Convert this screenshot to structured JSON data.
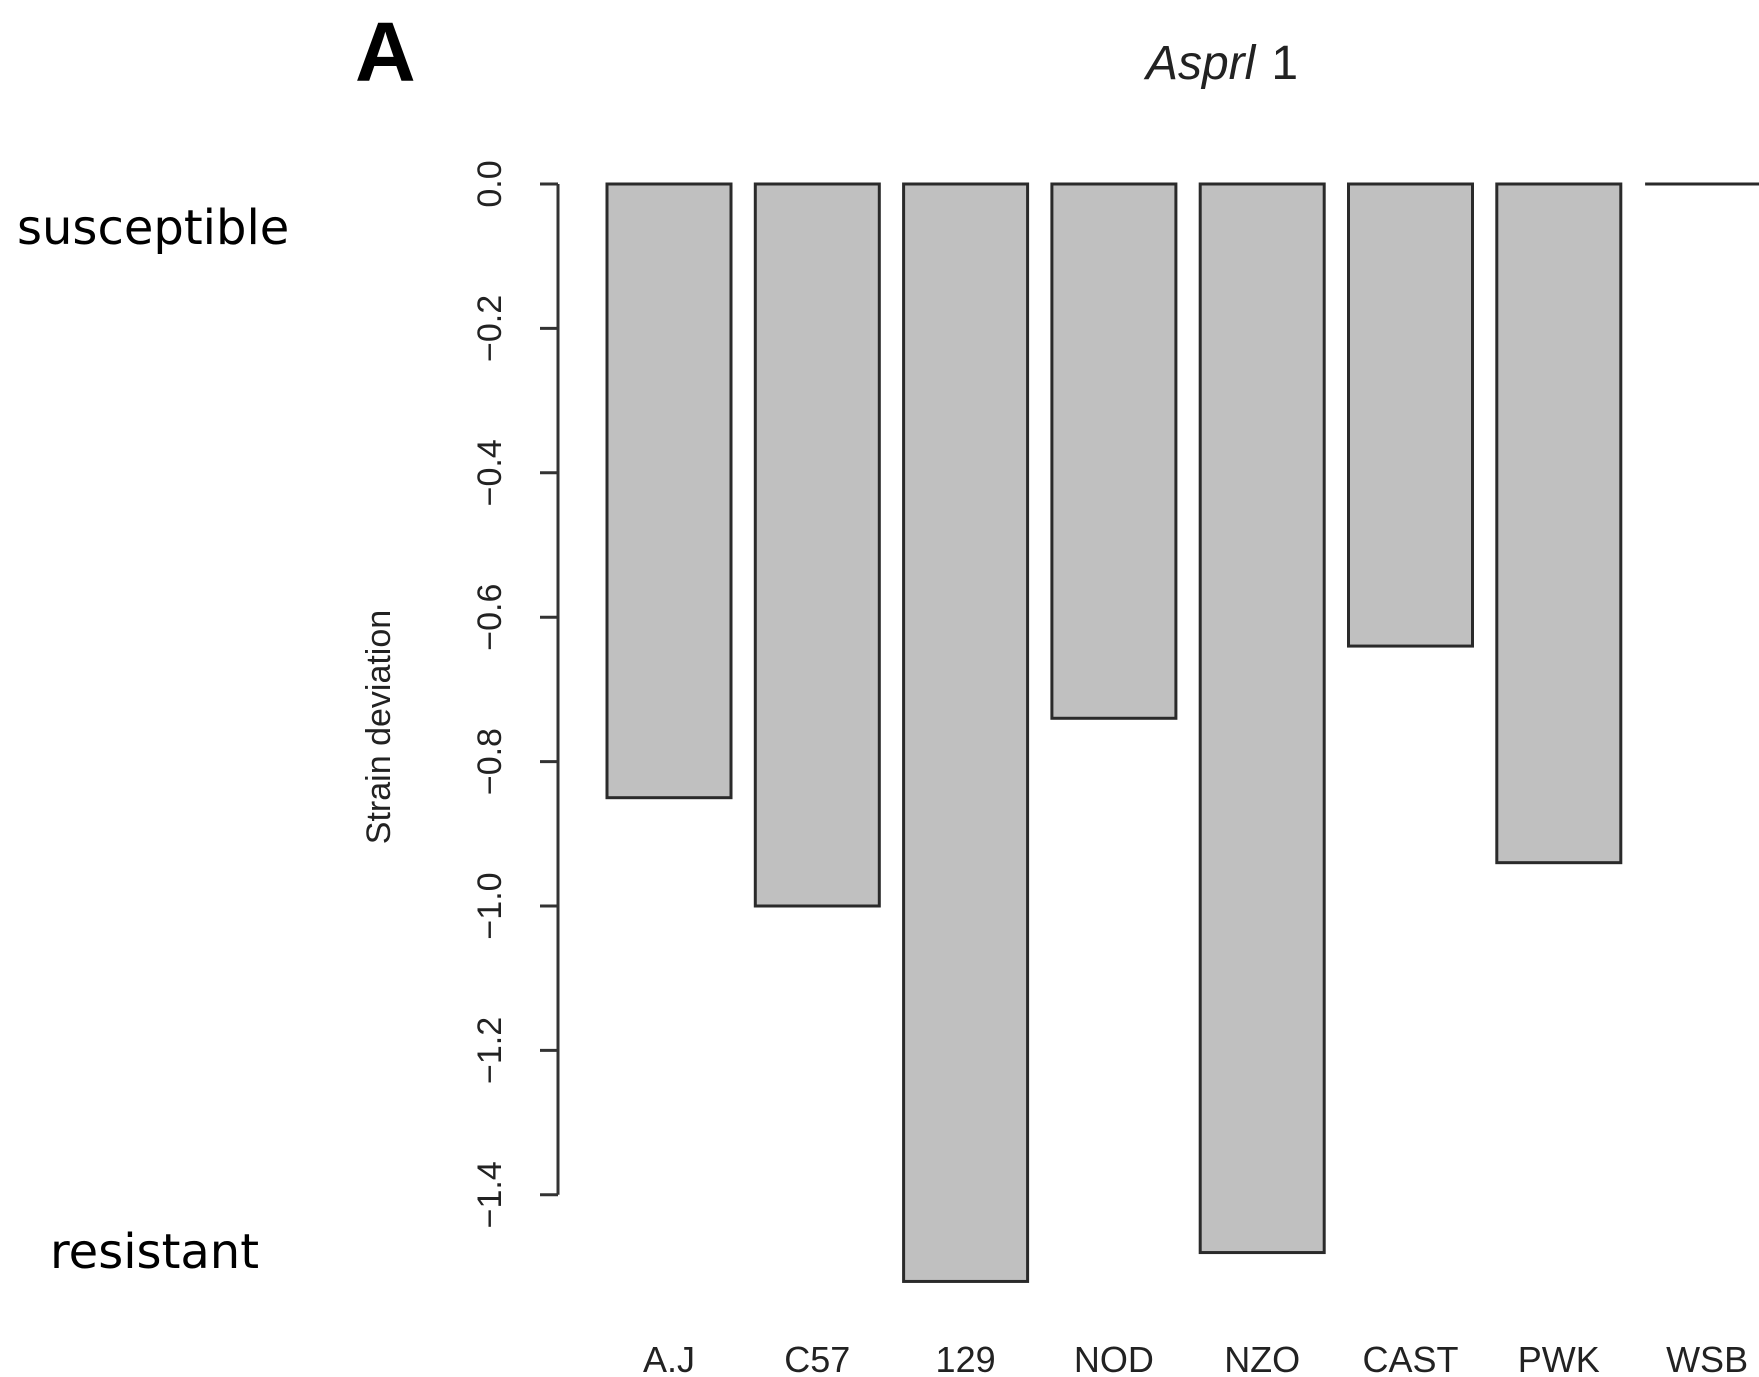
{
  "panel_label": "A",
  "side_labels": {
    "top": "susceptible",
    "bottom": "resistant"
  },
  "chart_data": {
    "type": "bar",
    "title_italic": "Asprl",
    "title_suffix": "1",
    "ylabel": "Strain deviation",
    "xlabel": "",
    "ylim": [
      -1.52,
      0.0
    ],
    "yticks": [
      0.0,
      -0.2,
      -0.4,
      -0.6,
      -0.8,
      -1.0,
      -1.2,
      -1.4
    ],
    "ytick_labels": [
      "0.0",
      "−0.2",
      "−0.4",
      "−0.6",
      "−0.8",
      "−1.0",
      "−1.2",
      "−1.4"
    ],
    "categories": [
      "A.J",
      "C57",
      "129",
      "NOD",
      "NZO",
      "CAST",
      "PWK",
      "WSB"
    ],
    "values": [
      -0.85,
      -1.0,
      -1.52,
      -0.74,
      -1.48,
      -0.64,
      -0.94,
      0.0
    ],
    "bar_color": "#c0c0c0",
    "bar_edge_color": "#2a2a2a"
  }
}
